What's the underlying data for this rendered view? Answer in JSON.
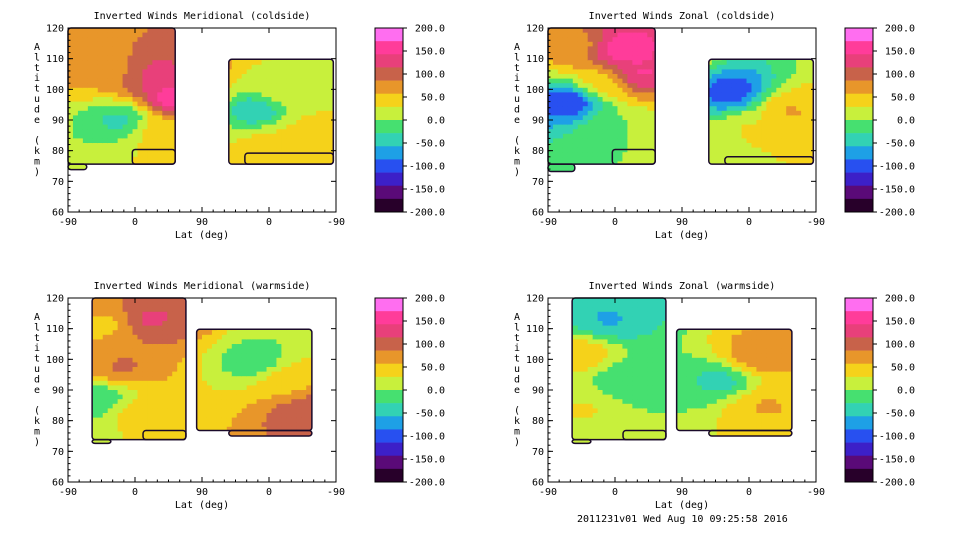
{
  "footer": "2011231v01 Wed Aug 10 09:25:58 2016",
  "colorbar": {
    "labels": [
      "200.0",
      "150.0",
      "100.0",
      "50.0",
      "0.0",
      "-50.0",
      "-100.0",
      "-150.0",
      "-200.0"
    ],
    "colors": [
      "#ff6ef0",
      "#ff3c9a",
      "#e8407a",
      "#c8624a",
      "#e8962a",
      "#f5d21a",
      "#c8f03c",
      "#46e070",
      "#32d2b4",
      "#1ea0e6",
      "#2850f0",
      "#3c20c8",
      "#5a0a78",
      "#28002a"
    ]
  },
  "chart_data": [
    {
      "type": "heatmap",
      "title": "Inverted Winds Meridional (coldside)",
      "xlabel": "Lat (deg)",
      "ylabel": "Altitude (km)",
      "xticks": [
        "-90",
        "0",
        "90",
        "0",
        "-90"
      ],
      "yticks": [
        "60",
        "70",
        "80",
        "90",
        "100",
        "110",
        "120"
      ],
      "ylim": [
        60,
        120
      ],
      "value_range": [
        -200,
        200
      ],
      "regions": [
        {
          "cx": 0.12,
          "cy": 0.22,
          "value": 60
        },
        {
          "cx": 0.2,
          "cy": 0.5,
          "value": -40
        },
        {
          "cx": 0.32,
          "cy": 0.25,
          "value": 120
        },
        {
          "cx": 0.35,
          "cy": 0.55,
          "value": 50
        },
        {
          "cx": 0.4,
          "cy": 0.38,
          "value": 170
        },
        {
          "cx": 0.7,
          "cy": 0.45,
          "value": -60
        },
        {
          "cx": 0.8,
          "cy": 0.35,
          "value": 20
        },
        {
          "cx": 0.9,
          "cy": 0.55,
          "value": 40
        },
        {
          "cx": 0.75,
          "cy": 0.62,
          "value": 40
        }
      ]
    },
    {
      "type": "heatmap",
      "title": "Inverted Winds Zonal (coldside)",
      "xlabel": "Lat (deg)",
      "ylabel": "Altitude (km)",
      "xticks": [
        "-90",
        "0",
        "90",
        "0",
        "-90"
      ],
      "yticks": [
        "60",
        "70",
        "80",
        "90",
        "100",
        "110",
        "120"
      ],
      "ylim": [
        60,
        120
      ],
      "value_range": [
        -200,
        200
      ],
      "regions": [
        {
          "cx": 0.1,
          "cy": 0.1,
          "value": 70
        },
        {
          "cx": 0.2,
          "cy": 0.3,
          "value": 40
        },
        {
          "cx": 0.28,
          "cy": 0.12,
          "value": 170
        },
        {
          "cx": 0.35,
          "cy": 0.25,
          "value": 150
        },
        {
          "cx": 0.08,
          "cy": 0.4,
          "value": -120
        },
        {
          "cx": 0.25,
          "cy": 0.55,
          "value": 0
        },
        {
          "cx": 0.68,
          "cy": 0.35,
          "value": -110
        },
        {
          "cx": 0.9,
          "cy": 0.45,
          "value": 60
        },
        {
          "cx": 0.75,
          "cy": 0.55,
          "value": 30
        }
      ]
    },
    {
      "type": "heatmap",
      "title": "Inverted Winds Meridional (warmside)",
      "xlabel": "Lat (deg)",
      "ylabel": "Altitude (km)",
      "xticks": [
        "-90",
        "0",
        "90",
        "0",
        "-90"
      ],
      "yticks": [
        "60",
        "70",
        "80",
        "90",
        "100",
        "110",
        "120"
      ],
      "ylim": [
        60,
        120
      ],
      "value_range": [
        -200,
        200
      ],
      "regions": [
        {
          "cx": 0.15,
          "cy": 0.15,
          "value": 50
        },
        {
          "cx": 0.3,
          "cy": 0.12,
          "value": 120
        },
        {
          "cx": 0.2,
          "cy": 0.38,
          "value": 90
        },
        {
          "cx": 0.12,
          "cy": 0.55,
          "value": -30
        },
        {
          "cx": 0.25,
          "cy": 0.62,
          "value": 40
        },
        {
          "cx": 0.7,
          "cy": 0.35,
          "value": -20
        },
        {
          "cx": 0.82,
          "cy": 0.45,
          "value": 50
        },
        {
          "cx": 0.9,
          "cy": 0.62,
          "value": 110
        }
      ]
    },
    {
      "type": "heatmap",
      "title": "Inverted Winds Zonal (warmside)",
      "xlabel": "Lat (deg)",
      "ylabel": "Altitude (km)",
      "xticks": [
        "-90",
        "0",
        "90",
        "0",
        "-90"
      ],
      "yticks": [
        "60",
        "70",
        "80",
        "90",
        "100",
        "110",
        "120"
      ],
      "ylim": [
        60,
        120
      ],
      "value_range": [
        -200,
        200
      ],
      "regions": [
        {
          "cx": 0.12,
          "cy": 0.3,
          "value": 50
        },
        {
          "cx": 0.22,
          "cy": 0.12,
          "value": -60
        },
        {
          "cx": 0.3,
          "cy": 0.45,
          "value": -30
        },
        {
          "cx": 0.15,
          "cy": 0.6,
          "value": 30
        },
        {
          "cx": 0.78,
          "cy": 0.32,
          "value": 80
        },
        {
          "cx": 0.65,
          "cy": 0.45,
          "value": -40
        },
        {
          "cx": 0.8,
          "cy": 0.58,
          "value": 60
        }
      ]
    }
  ]
}
